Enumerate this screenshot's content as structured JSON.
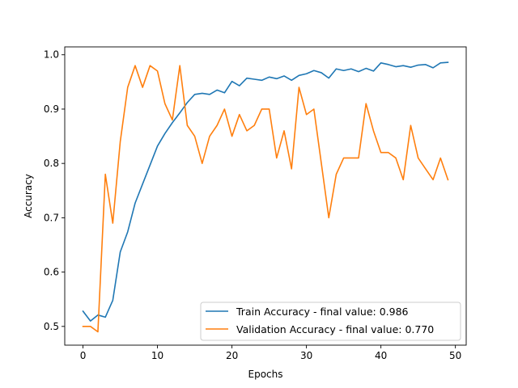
{
  "chart_data": {
    "type": "line",
    "title": "",
    "xlabel": "Epochs",
    "ylabel": "Accuracy",
    "xlim": [
      -2.45,
      51.45
    ],
    "ylim": [
      0.4655,
      1.0145
    ],
    "xticks": [
      0,
      10,
      20,
      30,
      40,
      50
    ],
    "yticks": [
      0.5,
      0.6,
      0.7,
      0.8,
      0.9,
      1.0
    ],
    "xtick_labels": [
      "0",
      "10",
      "20",
      "30",
      "40",
      "50"
    ],
    "ytick_labels": [
      "0.5",
      "0.6",
      "0.7",
      "0.8",
      "0.9",
      "1.0"
    ],
    "grid": false,
    "legend_position": "bottom-right",
    "x": [
      0,
      1,
      2,
      3,
      4,
      5,
      6,
      7,
      8,
      9,
      10,
      11,
      12,
      13,
      14,
      15,
      16,
      17,
      18,
      19,
      20,
      21,
      22,
      23,
      24,
      25,
      26,
      27,
      28,
      29,
      30,
      31,
      32,
      33,
      34,
      35,
      36,
      37,
      38,
      39,
      40,
      41,
      42,
      43,
      44,
      45,
      46,
      47,
      48,
      49
    ],
    "series": [
      {
        "name": "Train Accuracy - final value: 0.986",
        "color": "#1f77b4",
        "values": [
          0.528,
          0.51,
          0.521,
          0.517,
          0.548,
          0.637,
          0.674,
          0.727,
          0.762,
          0.797,
          0.832,
          0.855,
          0.875,
          0.893,
          0.912,
          0.927,
          0.929,
          0.927,
          0.935,
          0.93,
          0.951,
          0.943,
          0.957,
          0.955,
          0.953,
          0.959,
          0.956,
          0.961,
          0.953,
          0.962,
          0.965,
          0.971,
          0.967,
          0.957,
          0.974,
          0.971,
          0.974,
          0.969,
          0.975,
          0.97,
          0.985,
          0.982,
          0.978,
          0.98,
          0.977,
          0.981,
          0.982,
          0.976,
          0.985,
          0.986
        ]
      },
      {
        "name": "Validation Accuracy - final value: 0.770",
        "color": "#ff7f0e",
        "values": [
          0.5,
          0.5,
          0.49,
          0.78,
          0.69,
          0.84,
          0.94,
          0.98,
          0.94,
          0.98,
          0.97,
          0.91,
          0.88,
          0.98,
          0.87,
          0.85,
          0.8,
          0.85,
          0.87,
          0.9,
          0.85,
          0.89,
          0.86,
          0.87,
          0.9,
          0.9,
          0.81,
          0.86,
          0.79,
          0.94,
          0.89,
          0.9,
          0.8,
          0.7,
          0.78,
          0.81,
          0.81,
          0.81,
          0.91,
          0.86,
          0.82,
          0.82,
          0.81,
          0.77,
          0.87,
          0.81,
          0.79,
          0.77,
          0.81,
          0.77
        ]
      }
    ]
  }
}
